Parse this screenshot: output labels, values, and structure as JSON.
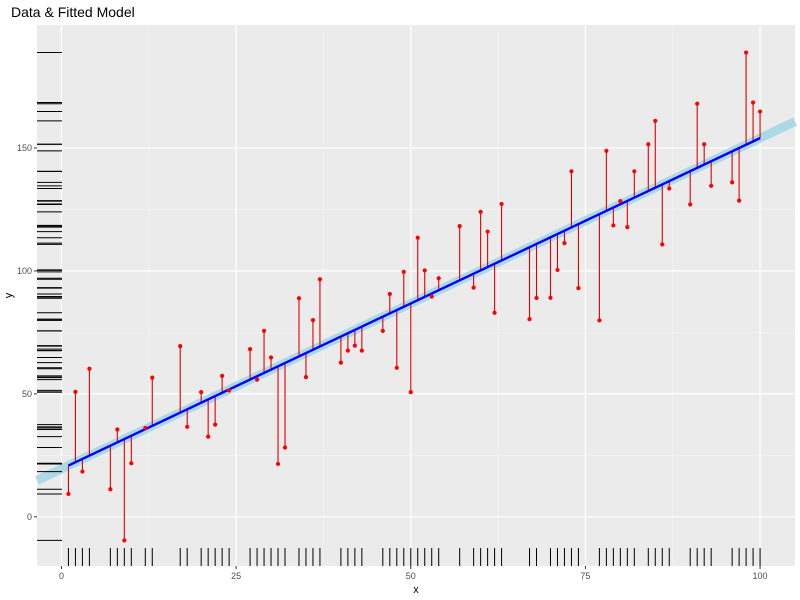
{
  "chart_data": {
    "type": "scatter",
    "title": "Data & Fitted Model",
    "xlabel": "x",
    "ylabel": "y",
    "xlim": [
      -3.5,
      105
    ],
    "ylim": [
      -20,
      200
    ],
    "x_ticks": [
      0,
      25,
      50,
      75,
      100
    ],
    "y_ticks": [
      0,
      50,
      100,
      150
    ],
    "grid": true,
    "fit": {
      "intercept": 19.5,
      "slope": 1.345,
      "x_range": [
        1,
        100
      ],
      "band_x_range": [
        -3.5,
        105
      ],
      "color": "#0000ff",
      "band_color": "#add8e6"
    },
    "points": [
      [
        1,
        9.3
      ],
      [
        2,
        50.8
      ],
      [
        3,
        18.4
      ],
      [
        4,
        60.2
      ],
      [
        7,
        11.2
      ],
      [
        8,
        35.5
      ],
      [
        9,
        -9.6
      ],
      [
        10,
        21.8
      ],
      [
        12,
        36.1
      ],
      [
        13,
        56.6
      ],
      [
        17,
        69.4
      ],
      [
        18,
        36.6
      ],
      [
        20,
        50.7
      ],
      [
        21,
        32.6
      ],
      [
        22,
        37.5
      ],
      [
        23,
        57.3
      ],
      [
        24,
        51.4
      ],
      [
        27,
        68.2
      ],
      [
        28,
        55.8
      ],
      [
        29,
        75.6
      ],
      [
        30,
        64.8
      ],
      [
        31,
        21.5
      ],
      [
        32,
        28.2
      ],
      [
        34,
        88.9
      ],
      [
        35,
        56.8
      ],
      [
        36,
        80.0
      ],
      [
        37,
        96.6
      ],
      [
        40,
        62.7
      ],
      [
        41,
        67.6
      ],
      [
        42,
        69.6
      ],
      [
        43,
        67.6
      ],
      [
        46,
        75.6
      ],
      [
        47,
        90.6
      ],
      [
        48,
        60.6
      ],
      [
        49,
        99.6
      ],
      [
        50,
        50.7
      ],
      [
        51,
        113.5
      ],
      [
        52,
        100.2
      ],
      [
        53,
        89.6
      ],
      [
        54,
        97.0
      ],
      [
        57,
        118.2
      ],
      [
        59,
        93.2
      ],
      [
        60,
        124.0
      ],
      [
        61,
        116.0
      ],
      [
        62,
        83.0
      ],
      [
        63,
        127.2
      ],
      [
        67,
        80.4
      ],
      [
        68,
        89.0
      ],
      [
        70,
        89.1
      ],
      [
        71,
        100.4
      ],
      [
        72,
        111.3
      ],
      [
        73,
        140.5
      ],
      [
        74,
        93.0
      ],
      [
        77,
        79.9
      ],
      [
        78,
        148.8
      ],
      [
        79,
        118.5
      ],
      [
        80,
        128.4
      ],
      [
        81,
        117.8
      ],
      [
        82,
        140.5
      ],
      [
        84,
        151.5
      ],
      [
        85,
        161.0
      ],
      [
        86,
        110.8
      ],
      [
        87,
        133.5
      ],
      [
        90,
        127.0
      ],
      [
        91,
        168.0
      ],
      [
        92,
        151.5
      ],
      [
        93,
        134.6
      ],
      [
        96,
        136.0
      ],
      [
        97,
        128.6
      ],
      [
        98,
        188.8
      ],
      [
        99,
        168.5
      ],
      [
        100,
        164.8
      ]
    ]
  }
}
